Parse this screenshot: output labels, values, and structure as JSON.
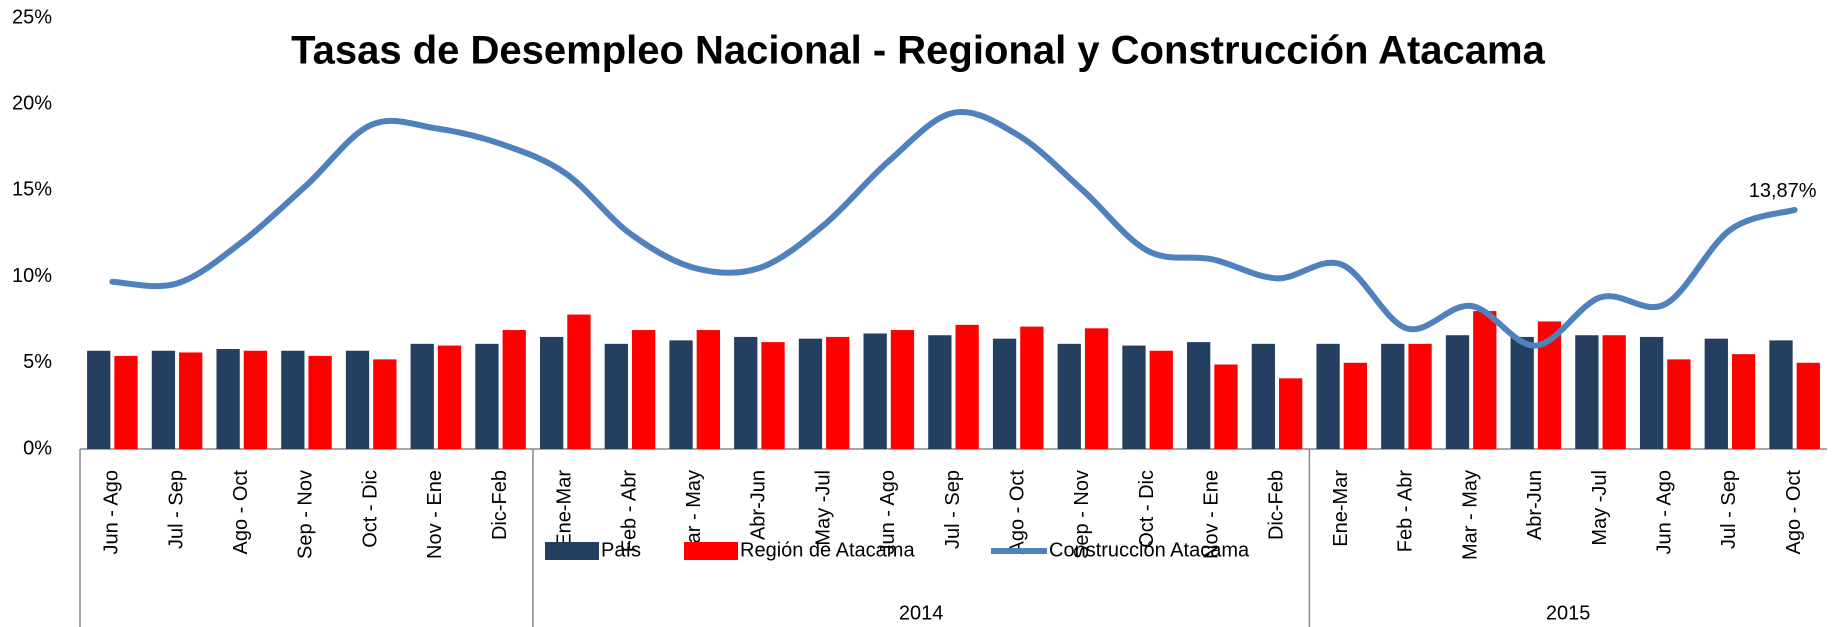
{
  "chart_data": {
    "type": "bar-line",
    "title": "Tasas de Desempleo Nacional - Regional y Construcción Atacama",
    "category_groups": [
      {
        "label": null,
        "categories": [
          "Jun - Ago",
          "Jul - Sep",
          "Ago - Oct",
          "Sep - Nov",
          "Oct - Dic",
          "Nov - Ene",
          "Dic-Feb"
        ]
      },
      {
        "label": "2014",
        "categories": [
          "Ene-Mar",
          "Feb - Abr",
          "Mar - May",
          "Abr-Jun",
          "May -Jul",
          "Jun - Ago",
          "Jul - Sep",
          "Ago - Oct",
          "Sep - Nov",
          "Oct - Dic",
          "Nov - Ene",
          "Dic-Feb"
        ]
      },
      {
        "label": "2015",
        "categories": [
          "Ene-Mar",
          "Feb - Abr",
          "Mar - May",
          "Abr-Jun",
          "May -Jul",
          "Jun - Ago",
          "Jul - Sep",
          "Ago - Oct"
        ]
      }
    ],
    "series": [
      {
        "name": "País",
        "type": "bar",
        "color": "#243f60",
        "values": [
          5.7,
          5.7,
          5.8,
          5.7,
          5.7,
          6.1,
          6.1,
          6.5,
          6.1,
          6.3,
          6.5,
          6.4,
          6.7,
          6.6,
          6.4,
          6.1,
          6.0,
          6.2,
          6.1,
          6.1,
          6.1,
          6.6,
          6.5,
          6.6,
          6.5,
          6.4,
          6.3
        ]
      },
      {
        "name": "Región de Atacama",
        "type": "bar",
        "color": "#ff0000",
        "values": [
          5.4,
          5.6,
          5.7,
          5.4,
          5.2,
          6.0,
          6.9,
          7.8,
          6.9,
          6.9,
          6.2,
          6.5,
          6.9,
          7.2,
          7.1,
          7.0,
          5.7,
          4.9,
          4.1,
          5.0,
          6.1,
          8.0,
          7.4,
          6.6,
          5.2,
          5.5,
          5.0
        ]
      },
      {
        "name": "Construcción Atacama",
        "type": "line",
        "color": "#4f81bd",
        "values": [
          9.7,
          9.6,
          12.0,
          15.3,
          18.8,
          18.6,
          17.7,
          16.0,
          12.5,
          10.5,
          10.5,
          13.0,
          16.7,
          19.5,
          18.2,
          15.0,
          11.5,
          11.0,
          9.9,
          10.7,
          7.0,
          8.3,
          6.0,
          8.8,
          8.4,
          12.7,
          13.87
        ],
        "value_labels": [
          null,
          null,
          null,
          null,
          null,
          null,
          null,
          null,
          null,
          null,
          null,
          null,
          null,
          null,
          null,
          null,
          null,
          null,
          null,
          null,
          null,
          null,
          null,
          null,
          null,
          null,
          "13,87%"
        ]
      }
    ],
    "ylim": [
      0,
      25
    ],
    "yticks": [
      {
        "value": 0,
        "label": "0%"
      },
      {
        "value": 5,
        "label": "5%"
      },
      {
        "value": 10,
        "label": "10%"
      },
      {
        "value": 15,
        "label": "15%"
      },
      {
        "value": 20,
        "label": "20%"
      },
      {
        "value": 25,
        "label": "25%"
      }
    ],
    "grid": false,
    "legend": "bottom"
  }
}
